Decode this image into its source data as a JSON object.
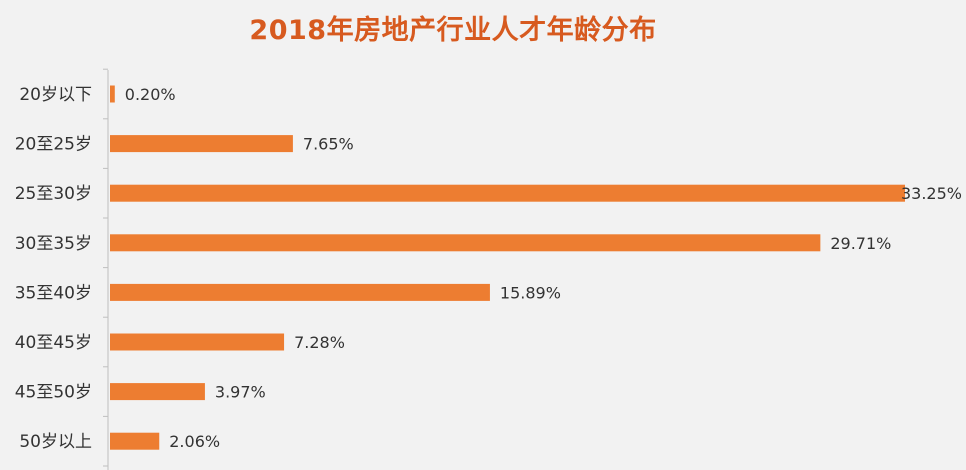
{
  "chart_data": {
    "type": "bar",
    "orientation": "horizontal",
    "title": "2018年房地产行业人才年龄分布",
    "categories": [
      "20岁以下",
      "20至25岁",
      "25至30岁",
      "30至35岁",
      "35至40岁",
      "40至45岁",
      "45至50岁",
      "50岁以上"
    ],
    "values": [
      0.2,
      7.65,
      33.25,
      29.71,
      15.89,
      7.28,
      3.97,
      2.06
    ],
    "value_labels": [
      "0.20%",
      "7.65%",
      "33.25%",
      "29.71%",
      "15.89%",
      "7.28%",
      "3.97%",
      "2.06%"
    ],
    "xlim": [
      0,
      33.25
    ],
    "grid": false,
    "legend": "none",
    "colors": {
      "bar": "#ed7d31",
      "title": "#d75a1f",
      "axis": "#bfbfbf",
      "text": "#333333",
      "background": "#f2f2f2"
    }
  }
}
